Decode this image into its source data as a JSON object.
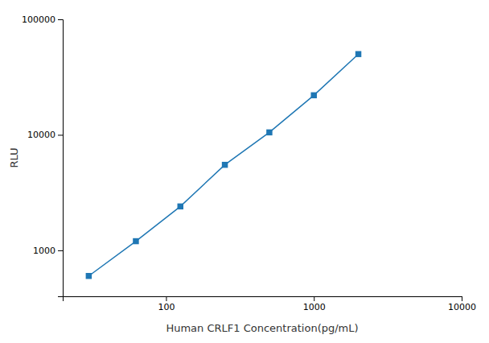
{
  "chart_data": {
    "type": "line",
    "x": [
      30,
      62.5,
      125,
      250,
      500,
      1000,
      2000
    ],
    "values": [
      600,
      1200,
      2400,
      5500,
      10500,
      22000,
      50000
    ],
    "xlabel": "Human CRLF1 Concentration(pg/mL)",
    "ylabel": "RLU",
    "xlim": [
      20,
      10000
    ],
    "ylim": [
      400,
      100000
    ],
    "xticks": [
      100,
      1000,
      10000
    ],
    "yticks": [
      1000,
      10000,
      100000
    ],
    "log": true,
    "marker": "square"
  }
}
